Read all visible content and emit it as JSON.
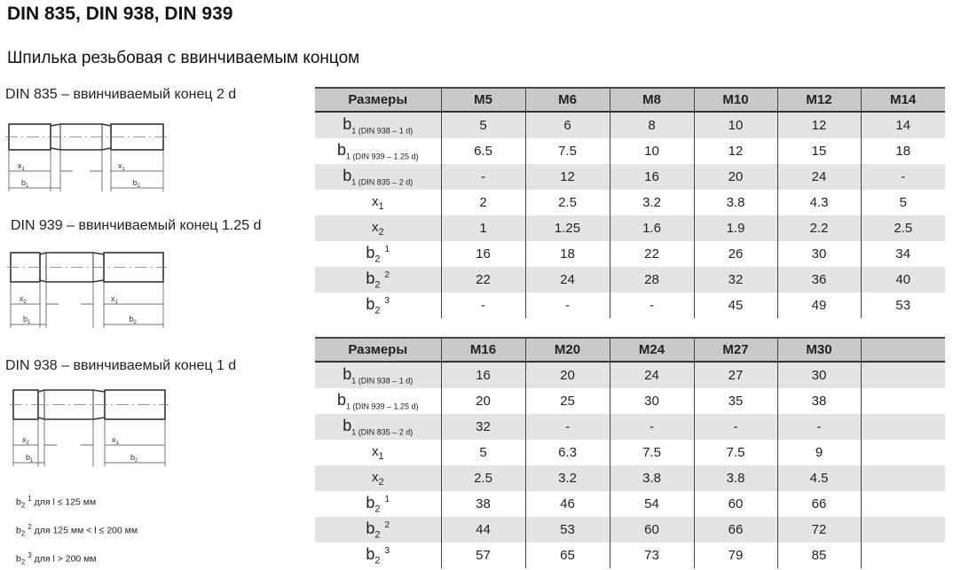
{
  "title": "DIN 835, DIN 938, DIN 939",
  "subtitle": "Шпилька резьбовая с ввинчиваемым концом",
  "diagrams": [
    {
      "label": "DIN 835 – ввинчиваемый конец 2 d",
      "dims": [
        "x1",
        "x1",
        "b1",
        "b2"
      ]
    },
    {
      "label": "DIN 939 – ввинчиваемый конец 1.25 d",
      "dims": [
        "x2",
        "x1",
        "b1",
        "b2"
      ]
    },
    {
      "label": "DIN 938 – ввинчиваемый конец 1 d",
      "dims": [
        "x2",
        "x1",
        "b1",
        "b2"
      ]
    }
  ],
  "notes": [
    {
      "base": "b",
      "sub": "2",
      "sup": "1",
      "text": " для l ≤ 125 мм"
    },
    {
      "base": "b",
      "sub": "2",
      "sup": "2",
      "text": " для 125 мм < l ≤ 200 мм"
    },
    {
      "base": "b",
      "sub": "2",
      "sup": "3",
      "text": " для l > 200 мм"
    }
  ],
  "row_labels": [
    {
      "base": "b",
      "sub": "1 (DIN 938 – 1 d)"
    },
    {
      "base": "b",
      "sub": "1 (DIN 939 – 1.25 d)"
    },
    {
      "base": "b",
      "sub": "1 (DIN 835 – 2 d)"
    },
    {
      "base": "x",
      "sub": "1"
    },
    {
      "base": "x",
      "sub": "2"
    },
    {
      "base": "b",
      "sub": "2",
      "sup": "1"
    },
    {
      "base": "b",
      "sub": "2",
      "sup": "2"
    },
    {
      "base": "b",
      "sub": "2",
      "sup": "3"
    }
  ],
  "tables": [
    {
      "header": [
        "Размеры",
        "M5",
        "M6",
        "M8",
        "M10",
        "M12",
        "M14"
      ],
      "rows": [
        [
          "5",
          "6",
          "8",
          "10",
          "12",
          "14"
        ],
        [
          "6.5",
          "7.5",
          "10",
          "12",
          "15",
          "18"
        ],
        [
          "-",
          "12",
          "16",
          "20",
          "24",
          "-"
        ],
        [
          "2",
          "2.5",
          "3.2",
          "3.8",
          "4.3",
          "5"
        ],
        [
          "1",
          "1.25",
          "1.6",
          "1.9",
          "2.2",
          "2.5"
        ],
        [
          "16",
          "18",
          "22",
          "26",
          "30",
          "34"
        ],
        [
          "22",
          "24",
          "28",
          "32",
          "36",
          "40"
        ],
        [
          "-",
          "-",
          "-",
          "45",
          "49",
          "53"
        ]
      ]
    },
    {
      "header": [
        "Размеры",
        "M16",
        "M20",
        "M24",
        "M27",
        "M30",
        ""
      ],
      "rows": [
        [
          "16",
          "20",
          "24",
          "27",
          "30",
          ""
        ],
        [
          "20",
          "25",
          "30",
          "35",
          "38",
          ""
        ],
        [
          "32",
          "-",
          "-",
          "-",
          "-",
          ""
        ],
        [
          "5",
          "6.3",
          "7.5",
          "7.5",
          "9",
          ""
        ],
        [
          "2.5",
          "3.2",
          "3.8",
          "3.8",
          "4.5",
          ""
        ],
        [
          "38",
          "46",
          "54",
          "60",
          "66",
          ""
        ],
        [
          "44",
          "53",
          "60",
          "66",
          "72",
          ""
        ],
        [
          "57",
          "65",
          "73",
          "79",
          "85",
          ""
        ]
      ]
    }
  ]
}
